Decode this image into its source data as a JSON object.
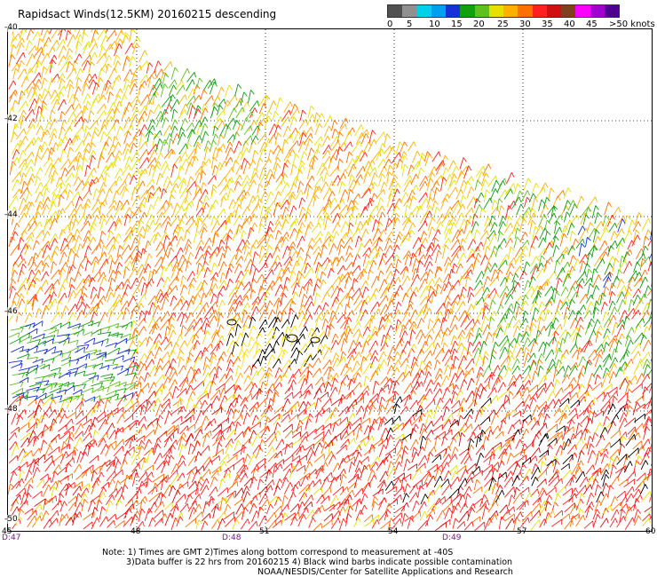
{
  "title": "Rapidsact Winds(12.5KM) 20160215 descending",
  "legend": {
    "colors": [
      "#505050",
      "#909090",
      "#00d0e8",
      "#00a0f0",
      "#1830d8",
      "#10a010",
      "#60c020",
      "#e8e000",
      "#ffb000",
      "#ff7000",
      "#ff2020",
      "#d01010",
      "#804020",
      "#ff00ff",
      "#a000d0",
      "#500090"
    ],
    "labels": [
      "0",
      "5",
      "10",
      "15",
      "20",
      "25",
      "30",
      "35",
      "40",
      "45",
      ">50 knots"
    ]
  },
  "map": {
    "lat_labels": [
      "-40",
      "-42",
      "-44",
      "-46",
      "-48",
      "-50"
    ],
    "lon_labels": [
      "45",
      "48",
      "51",
      "54",
      "57",
      "60"
    ],
    "time_labels": [
      "D:47",
      "D:48",
      "D:49"
    ],
    "lat_range": [
      -50,
      -40
    ],
    "lon_range": [
      45,
      60
    ],
    "grid": "dotted 3° lon x 2° lat",
    "wind_regions": [
      {
        "region": "north-west",
        "speed_knots": "20-30",
        "color": "#ffb000"
      },
      {
        "region": "north-central band",
        "speed_knots": "15-20",
        "color": "#10a010"
      },
      {
        "region": "east",
        "speed_knots": "15-25",
        "color": "#60c020"
      },
      {
        "region": "west at -46",
        "speed_knots": "15-20",
        "color": "#1830d8"
      },
      {
        "region": "south",
        "speed_knots": "30-35",
        "color": "#ff2020"
      },
      {
        "region": "center low near -46,51",
        "speed_knots": "0-10",
        "color": "#000000"
      }
    ]
  },
  "notes": {
    "line1": "Note: 1) Times are GMT 2)Times along bottom correspond to measurement at -40S",
    "line2": "3)Data buffer is 22 hrs from 20160215 4) Black wind barbs indicate possible contamination",
    "line3": "NOAA/NESDIS/Center for Satellite Applications and Research"
  }
}
